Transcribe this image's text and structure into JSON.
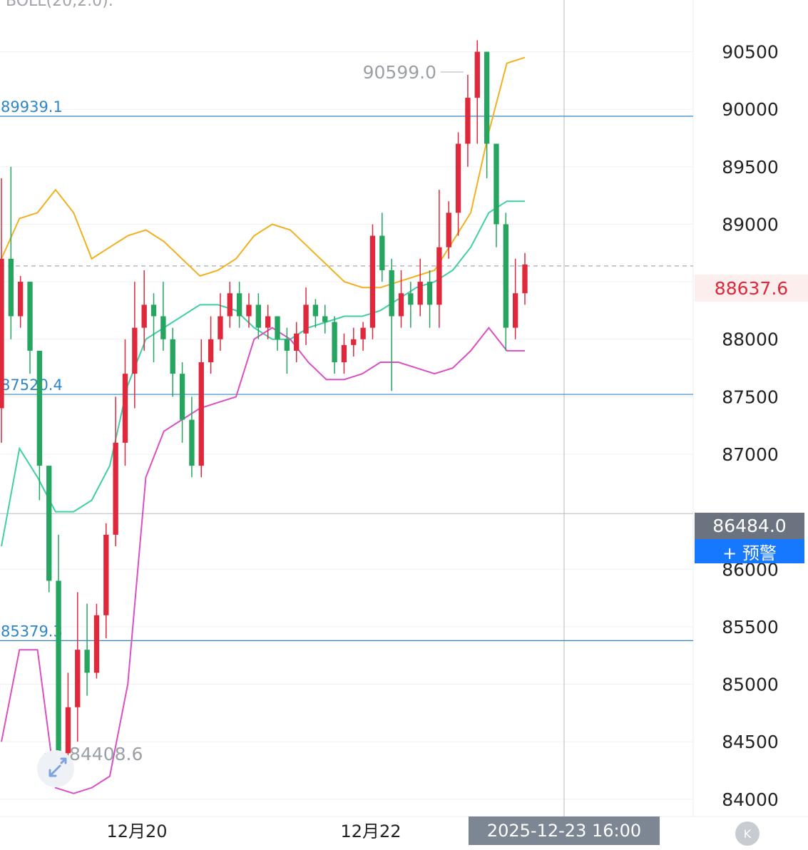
{
  "indicator": {
    "label": "BOLL(20,2.0):"
  },
  "price_axis": [
    "90500",
    "90000",
    "89500",
    "89000",
    "88500",
    "88000",
    "87500",
    "87000",
    "86000",
    "85500",
    "85000",
    "84500",
    "84000"
  ],
  "date_axis": [
    "12月20",
    "12月22"
  ],
  "last_price": "88637.6",
  "cursor": {
    "price": "86484.0",
    "time": "2025-12-23 16:00"
  },
  "alert_button": {
    "label": "+ 预警"
  },
  "extremes": {
    "high": "90599.0",
    "low": "84408.6"
  },
  "horizontal_lines": [
    "89939.1",
    "87520.4",
    "85379.3"
  ],
  "icons": {
    "collapse": "collapse-icon",
    "expand": "expand-arrows-icon"
  },
  "colors": {
    "up": "#e0283c",
    "down": "#25a55f",
    "upper_band": "#f2b01e",
    "middle_band": "#3fcfa5",
    "lower_band": "#d94fc4",
    "hline": "#2e86c7",
    "alert": "#1677ff"
  },
  "chart_data": {
    "type": "candlestick",
    "interval": "hourly",
    "ylim": [
      83850,
      90950
    ],
    "candles": [
      [
        87400,
        88700,
        89400,
        87100
      ],
      [
        88700,
        88200,
        89500,
        88000
      ],
      [
        88200,
        88500,
        88550,
        88100
      ],
      [
        88500,
        87900,
        88500,
        87700
      ],
      [
        87900,
        86900,
        87900,
        86600
      ],
      [
        86900,
        85900,
        86900,
        85800
      ],
      [
        85900,
        84400,
        86300,
        84400
      ],
      [
        84400,
        84800,
        85100,
        84300
      ],
      [
        84800,
        85300,
        85800,
        84500
      ],
      [
        85300,
        85100,
        85700,
        84900
      ],
      [
        85100,
        85600,
        85700,
        85050
      ],
      [
        85600,
        86300,
        86400,
        85400
      ],
      [
        86300,
        87100,
        87500,
        86200
      ],
      [
        87100,
        87700,
        88000,
        86900
      ],
      [
        87700,
        88100,
        88500,
        87400
      ],
      [
        88100,
        88300,
        88600,
        87900
      ],
      [
        88300,
        88200,
        88400,
        87800
      ],
      [
        88200,
        88000,
        88500,
        87900
      ],
      [
        88000,
        87700,
        88100,
        87500
      ],
      [
        87700,
        87300,
        87800,
        87100
      ],
      [
        87300,
        86900,
        87500,
        86800
      ],
      [
        86900,
        87800,
        88000,
        86800
      ],
      [
        87800,
        88000,
        88200,
        87700
      ],
      [
        88000,
        88200,
        88400,
        87900
      ],
      [
        88200,
        88400,
        88500,
        88100
      ],
      [
        88400,
        88200,
        88500,
        88100
      ],
      [
        88200,
        88300,
        88400,
        88100
      ],
      [
        88300,
        88100,
        88400,
        88000
      ],
      [
        88100,
        88200,
        88300,
        88000
      ],
      [
        88200,
        88000,
        88200,
        87900
      ],
      [
        88000,
        87900,
        88100,
        87700
      ],
      [
        87900,
        88050,
        88150,
        87800
      ],
      [
        88050,
        88300,
        88450,
        87950
      ],
      [
        88300,
        88200,
        88350,
        88100
      ],
      [
        88200,
        88150,
        88300,
        88050
      ],
      [
        88150,
        87800,
        88200,
        87700
      ],
      [
        87800,
        87950,
        88050,
        87700
      ],
      [
        87950,
        88000,
        88100,
        87850
      ],
      [
        88000,
        88100,
        88150,
        87900
      ],
      [
        88100,
        88900,
        89000,
        88000
      ],
      [
        88900,
        88600,
        89100,
        88500
      ],
      [
        88600,
        88200,
        88700,
        87550
      ],
      [
        88200,
        88400,
        88600,
        88100
      ],
      [
        88400,
        88300,
        88500,
        88100
      ],
      [
        88300,
        88500,
        88700,
        88200
      ],
      [
        88500,
        88300,
        88600,
        88100
      ],
      [
        88300,
        88800,
        89300,
        88100
      ],
      [
        88800,
        89100,
        89200,
        88700
      ],
      [
        89100,
        89700,
        89800,
        88900
      ],
      [
        89700,
        90100,
        90300,
        89500
      ],
      [
        90100,
        90500,
        90600,
        89700
      ],
      [
        90500,
        89700,
        90500,
        89400
      ],
      [
        89700,
        89000,
        89700,
        88800
      ],
      [
        89000,
        88100,
        89100,
        87900
      ],
      [
        88100,
        88400,
        88700,
        88000
      ],
      [
        88400,
        88650,
        88750,
        88300
      ]
    ],
    "bands": {
      "upper": [
        88700,
        89050,
        89100,
        89300,
        89100,
        88700,
        88800,
        88900,
        88950,
        88850,
        88700,
        88550,
        88600,
        88700,
        88900,
        89000,
        88950,
        88800,
        88650,
        88500,
        88450,
        88450,
        88500,
        88550,
        88600,
        88850,
        89100,
        89800,
        90400,
        90450
      ],
      "middle": [
        86200,
        87050,
        86800,
        86500,
        86500,
        86600,
        86900,
        87600,
        88000,
        88100,
        88200,
        88300,
        88300,
        88250,
        88100,
        88000,
        88000,
        88100,
        88150,
        88200,
        88200,
        88250,
        88350,
        88450,
        88500,
        88600,
        88800,
        89100,
        89200,
        89200
      ],
      "lower": [
        84500,
        85300,
        85300,
        84100,
        84050,
        84100,
        84200,
        85000,
        86800,
        87200,
        87300,
        87400,
        87450,
        87500,
        88000,
        88100,
        88000,
        87800,
        87650,
        87650,
        87700,
        87800,
        87800,
        87750,
        87700,
        87750,
        87900,
        88100,
        87900,
        87900
      ]
    }
  }
}
